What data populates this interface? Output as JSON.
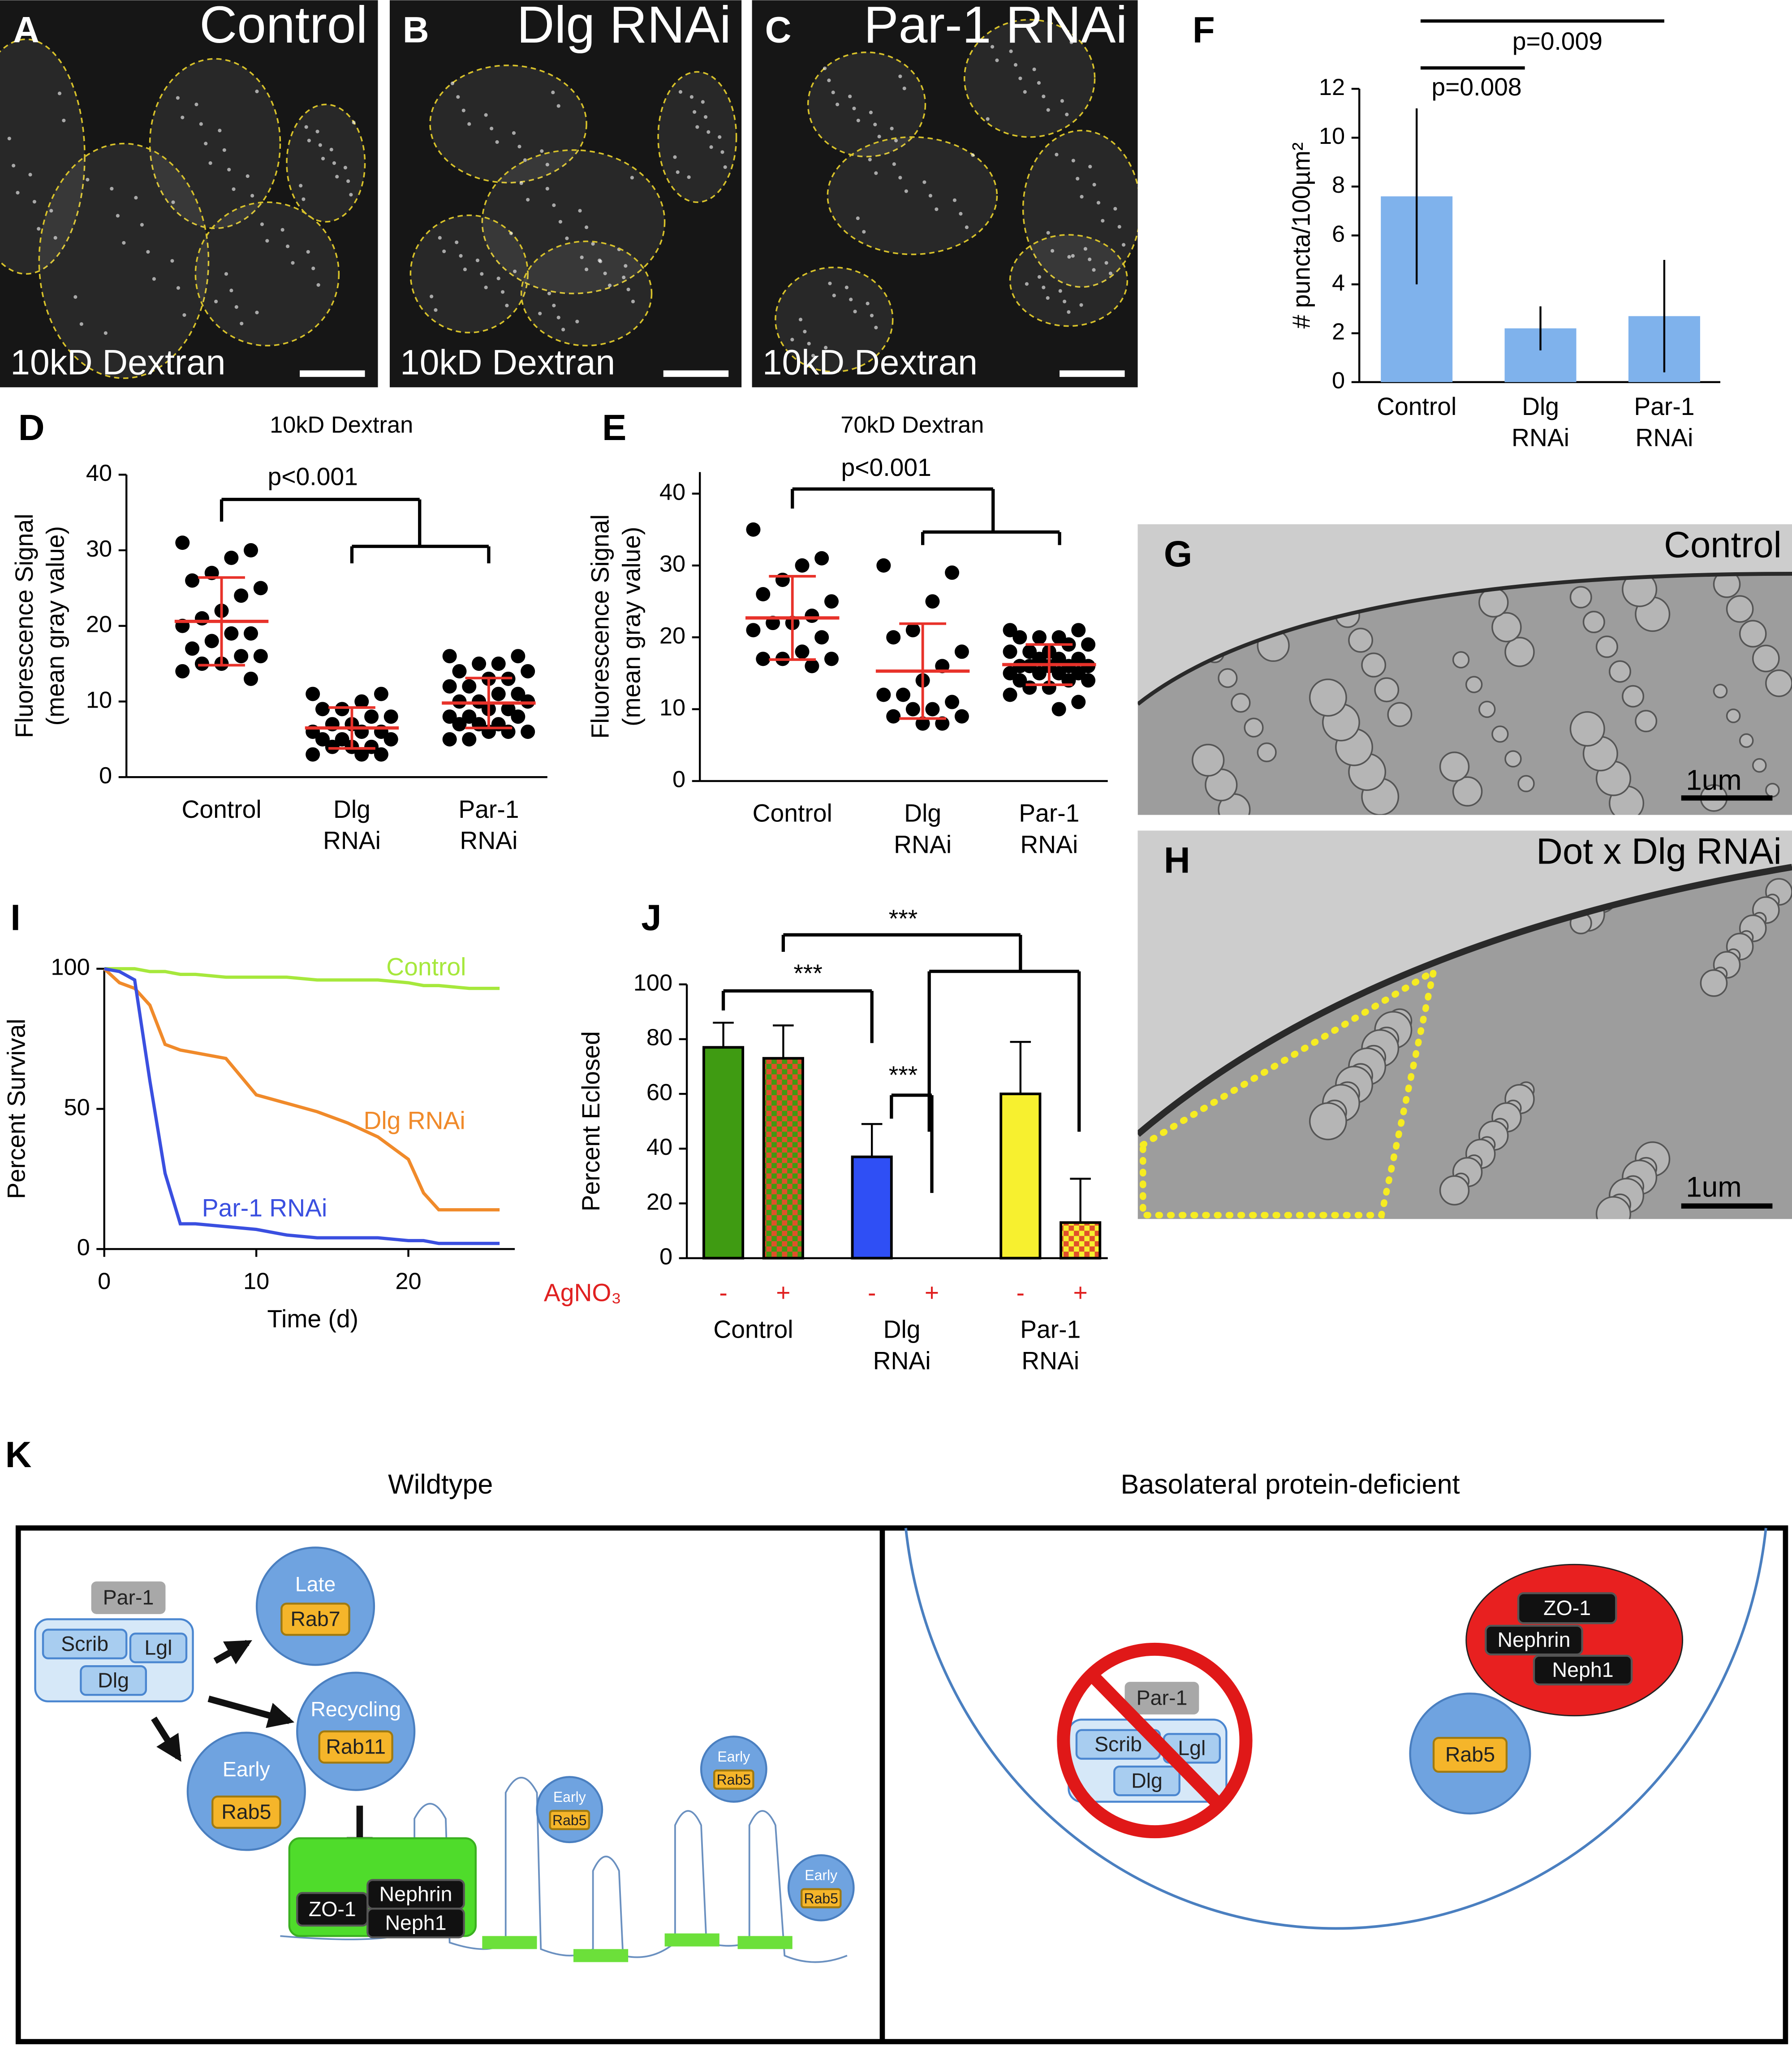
{
  "panels": {
    "A": {
      "label": "A",
      "title": "Control",
      "stain": "10kD Dextran"
    },
    "B": {
      "label": "B",
      "title": "Dlg RNAi",
      "stain": "10kD Dextran"
    },
    "C": {
      "label": "C",
      "title": "Par-1 RNAi",
      "stain": "10kD Dextran"
    },
    "G": {
      "label": "G",
      "title": "Control",
      "scale": "1um"
    },
    "H": {
      "label": "H",
      "title": "Dot x Dlg RNAi",
      "scale": "1um"
    }
  },
  "chart_data": [
    {
      "type": "bar",
      "panel": "F",
      "categories": [
        "Control",
        "Dlg RNAi",
        "Par-1 RNAi"
      ],
      "values": [
        7.6,
        2.2,
        2.7
      ],
      "errors": [
        3.6,
        0.9,
        2.3
      ],
      "color": "#7fb2ec",
      "y_label": "# puncta/100µm²",
      "ylim": [
        0,
        12
      ],
      "yticks": [
        0,
        2,
        4,
        6,
        8,
        10,
        12
      ],
      "annotations": [
        "p=0.008",
        "p=0.009"
      ]
    },
    {
      "type": "dot",
      "panel": "D",
      "title": "10kD Dextran",
      "y_label": [
        "Fluorescence Signal",
        "(mean gray value)"
      ],
      "categories": [
        "Control",
        "Dlg RNAi",
        "Par-1 RNAi"
      ],
      "color": "#000000",
      "summary_color": "#e8322a",
      "groups": [
        {
          "values": [
            31,
            30,
            29,
            27,
            26,
            25,
            24,
            22,
            21,
            20,
            19,
            19,
            18,
            17,
            16,
            16,
            15,
            15,
            14,
            13
          ],
          "mean": 20.6,
          "sd": 5.8
        },
        {
          "values": [
            11,
            11,
            10,
            9,
            9,
            8,
            8,
            7,
            7,
            6,
            6,
            6,
            5,
            5,
            5,
            4,
            4,
            4,
            3,
            3,
            3
          ],
          "mean": 6.5,
          "sd": 2.7
        },
        {
          "values": [
            16,
            16,
            15,
            15,
            14,
            14,
            13,
            13,
            12,
            12,
            11,
            11,
            10,
            10,
            10,
            9,
            9,
            8,
            8,
            8,
            7,
            7,
            7,
            6,
            6,
            6,
            5,
            5
          ],
          "mean": 9.8,
          "sd": 3.3
        }
      ],
      "ylim": [
        0,
        40
      ],
      "yticks": [
        0,
        10,
        20,
        30,
        40
      ],
      "annotations": [
        "p<0.001"
      ]
    },
    {
      "type": "dot",
      "panel": "E",
      "title": "70kD Dextran",
      "y_label": [
        "Fluorescence Signal",
        "(mean gray value)"
      ],
      "categories": [
        "Control",
        "Dlg RNAi",
        "Par-1 RNAi"
      ],
      "color": "#000000",
      "summary_color": "#e8322a",
      "groups": [
        {
          "values": [
            35,
            31,
            30,
            28,
            26,
            25,
            23,
            22,
            22,
            21,
            20,
            18,
            17,
            17,
            17,
            16
          ],
          "mean": 22.7,
          "sd": 5.8
        },
        {
          "values": [
            30,
            29,
            25,
            21,
            20,
            18,
            16,
            14,
            12,
            12,
            11,
            10,
            10,
            9,
            9,
            8,
            8
          ],
          "mean": 15.3,
          "sd": 6.6
        },
        {
          "values": [
            21,
            21,
            20,
            20,
            20,
            19,
            19,
            18,
            18,
            18,
            17,
            17,
            17,
            16,
            16,
            16,
            16,
            16,
            15,
            15,
            15,
            15,
            14,
            14,
            14,
            13,
            13,
            12,
            11,
            10
          ],
          "mean": 16.2,
          "sd": 2.8
        }
      ],
      "ylim": [
        0,
        43
      ],
      "yticks": [
        0,
        10,
        20,
        30,
        40
      ],
      "annotations": [
        "p<0.001"
      ]
    },
    {
      "type": "line",
      "panel": "I",
      "x_label": "Time (d)",
      "y_label": "Percent Survival",
      "x": [
        0,
        1,
        2,
        3,
        4,
        5,
        6,
        8,
        10,
        12,
        14,
        16,
        18,
        20,
        21,
        22,
        24,
        26
      ],
      "xlim": [
        0,
        27
      ],
      "xticks": [
        0,
        10,
        20
      ],
      "ylim": [
        0,
        100
      ],
      "yticks": [
        0,
        50,
        100
      ],
      "series": [
        {
          "name": "Control",
          "color": "#a6e83c",
          "values": [
            100,
            100,
            100,
            99,
            99,
            98,
            98,
            97,
            97,
            97,
            96,
            96,
            96,
            95,
            94,
            94,
            93,
            93
          ]
        },
        {
          "name": "Dlg RNAi",
          "color": "#f08a2a",
          "values": [
            100,
            95,
            93,
            87,
            73,
            71,
            70,
            68,
            55,
            52,
            49,
            45,
            40,
            32,
            20,
            14,
            14,
            14
          ]
        },
        {
          "name": "Par-1 RNAi",
          "color": "#3a4fe0",
          "values": [
            100,
            99,
            96,
            60,
            27,
            9,
            9,
            8,
            7,
            5,
            4,
            4,
            4,
            3,
            3,
            2,
            2,
            2
          ]
        }
      ]
    },
    {
      "type": "grouped_bar",
      "panel": "J",
      "y_label": "Percent Eclosed",
      "treatment_label": "AgNO₃",
      "categories": [
        "Control",
        "Dlg RNAi",
        "Par-1 RNAi"
      ],
      "series": [
        {
          "name": "-",
          "colors": [
            "#3f9b12",
            "#2f4ff5",
            "#f7f02f"
          ],
          "values": [
            77,
            37,
            60
          ],
          "errors": [
            9,
            12,
            19
          ]
        },
        {
          "name": "+",
          "colors": [
            "#3f9b12",
            "#2f4ff5",
            "#f7f02f"
          ],
          "pattern_color": "#e0502a",
          "values": [
            73,
            0,
            13
          ],
          "errors": [
            12,
            0,
            16
          ]
        }
      ],
      "ylim": [
        0,
        100
      ],
      "yticks": [
        0,
        20,
        40,
        60,
        80,
        100
      ],
      "annotations": [
        "***",
        "***",
        "***"
      ]
    }
  ],
  "diagram": {
    "label": "K",
    "wildtype": {
      "title": "Wildtype",
      "complex": {
        "top": "Par-1",
        "items": [
          "Scrib",
          "Lgl",
          "Dlg"
        ]
      },
      "late": {
        "label": "Late",
        "marker": "Rab7"
      },
      "recycling": {
        "label": "Recycling",
        "marker": "Rab11"
      },
      "early": {
        "label": "Early",
        "marker": "Rab5"
      },
      "junction": [
        "ZO-1",
        "Nephrin",
        "Neph1"
      ],
      "small_endosomes": [
        {
          "label": "Early",
          "marker": "Rab5"
        },
        {
          "label": "Early",
          "marker": "Rab5"
        },
        {
          "label": "Early",
          "marker": "Rab5"
        }
      ]
    },
    "deficient": {
      "title": "Basolateral protein-deficient",
      "complex": {
        "top": "Par-1",
        "items": [
          "Scrib",
          "Lgl",
          "Dlg"
        ]
      },
      "aggregate": [
        "ZO-1",
        "Nephrin",
        "Neph1"
      ],
      "endosome": {
        "marker": "Rab5"
      }
    }
  }
}
